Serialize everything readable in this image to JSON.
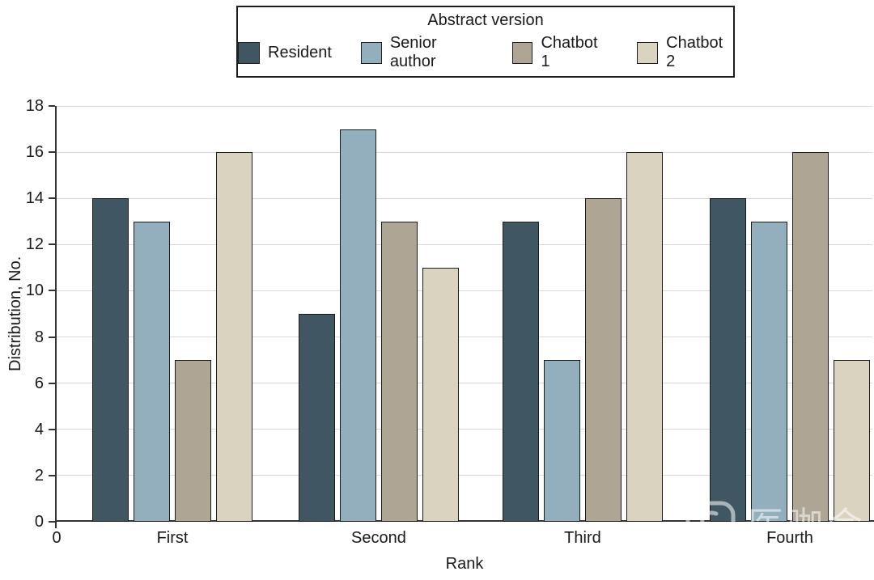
{
  "figure": {
    "legend": {
      "title": "Abstract version"
    },
    "watermark": {
      "text": "医咖会",
      "logo_icon": "rounded-square-face-logo"
    }
  },
  "chart_data": {
    "type": "bar",
    "title": "",
    "categories": [
      "First",
      "Second",
      "Third",
      "Fourth"
    ],
    "series": [
      {
        "name": "Resident",
        "color": "#405763",
        "values": [
          14,
          9,
          13,
          14
        ]
      },
      {
        "name": "Senior author",
        "color": "#93aebd",
        "values": [
          13,
          17,
          7,
          13
        ]
      },
      {
        "name": "Chatbot 1",
        "color": "#aea595",
        "values": [
          7,
          13,
          14,
          16
        ]
      },
      {
        "name": "Chatbot 2",
        "color": "#d9d3c0",
        "values": [
          16,
          11,
          16,
          7
        ]
      }
    ],
    "xlabel": "Rank",
    "ylabel": "Distribution, No.",
    "ylim": [
      0,
      18
    ],
    "yticks": [
      0,
      2,
      4,
      6,
      8,
      10,
      12,
      14,
      16,
      18
    ],
    "x_origin_label": "0",
    "grid": true,
    "legend_position": "top-center",
    "colors": {
      "gridline": "#d8d8d8",
      "axis": "#333333",
      "bar_border": "#1c1c1c",
      "text": "#1a1a1a",
      "background": "#ffffff"
    }
  }
}
